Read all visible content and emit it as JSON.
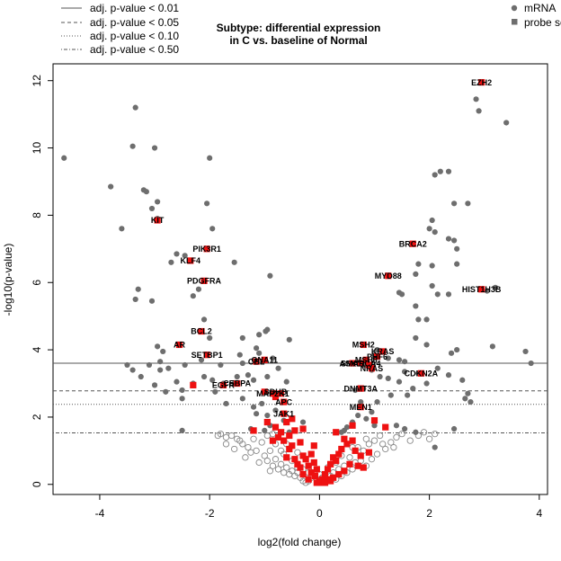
{
  "chart_data": {
    "type": "scatter",
    "title_lines": [
      "Subtype: differential expression",
      "in C vs. baseline of Normal"
    ],
    "xlabel": "log2(fold change)",
    "ylabel": "-log10(p-value)",
    "xlim": [
      -4.85,
      4.15
    ],
    "ylim": [
      -0.3,
      12.5
    ],
    "xticks": [
      -4,
      -2,
      0,
      2,
      4
    ],
    "yticks": [
      0,
      2,
      4,
      6,
      8,
      10,
      12
    ],
    "thresholds": [
      {
        "label": "adj. p-value < 0.01",
        "y": 3.6,
        "style": "solid"
      },
      {
        "label": "adj. p-value < 0.05",
        "y": 2.78,
        "style": "dashed"
      },
      {
        "label": "adj. p-value < 0.10",
        "y": 2.38,
        "style": "dotted"
      },
      {
        "label": "adj. p-value < 0.50",
        "y": 1.53,
        "style": "dotdash"
      }
    ],
    "legend_right": [
      {
        "label": "mRNA",
        "shape": "circle"
      },
      {
        "label": "probe set",
        "shape": "square"
      }
    ],
    "colors": {
      "significant": "#6e6e6e",
      "probe": "#ee1111",
      "open": "#888888",
      "line": "#555555"
    },
    "mrna_significant": [
      [
        -4.65,
        9.7
      ],
      [
        -3.8,
        8.85
      ],
      [
        -3.6,
        7.6
      ],
      [
        -3.4,
        10.05
      ],
      [
        -3.35,
        11.2
      ],
      [
        -3.35,
        5.5
      ],
      [
        -3.2,
        8.75
      ],
      [
        -3.15,
        8.7
      ],
      [
        -3.05,
        8.2
      ],
      [
        -3.0,
        10.0
      ],
      [
        -2.95,
        7.9
      ],
      [
        -2.95,
        8.4
      ],
      [
        -3.05,
        5.45
      ],
      [
        -3.3,
        5.8
      ],
      [
        -2.7,
        6.6
      ],
      [
        -2.6,
        6.85
      ],
      [
        -2.45,
        6.8
      ],
      [
        -2.3,
        5.6
      ],
      [
        -2.05,
        8.35
      ],
      [
        -2.0,
        9.7
      ],
      [
        -1.95,
        7.6
      ],
      [
        -1.55,
        6.6
      ],
      [
        -0.9,
        6.2
      ],
      [
        -2.2,
        5.8
      ],
      [
        -2.1,
        4.9
      ],
      [
        -2.0,
        4.35
      ],
      [
        -1.4,
        4.35
      ],
      [
        -1.15,
        4.05
      ],
      [
        -1.1,
        4.45
      ],
      [
        -1.1,
        3.9
      ],
      [
        -0.98,
        4.55
      ],
      [
        -0.95,
        4.6
      ],
      [
        -0.55,
        4.3
      ],
      [
        -1.4,
        3.6
      ],
      [
        -1.45,
        3.85
      ],
      [
        -1.8,
        3.55
      ],
      [
        -2.15,
        3.7
      ],
      [
        -2.45,
        3.55
      ],
      [
        -2.75,
        3.45
      ],
      [
        -2.85,
        3.95
      ],
      [
        -2.9,
        3.4
      ],
      [
        -2.95,
        4.1
      ],
      [
        -3.1,
        3.55
      ],
      [
        -3.25,
        3.2
      ],
      [
        -3.4,
        3.4
      ],
      [
        -3.5,
        3.55
      ],
      [
        -2.9,
        3.65
      ],
      [
        -0.6,
        3.05
      ],
      [
        -0.75,
        3.45
      ],
      [
        -0.85,
        3.75
      ],
      [
        -0.95,
        3.2
      ],
      [
        -1.2,
        3.1
      ],
      [
        -1.3,
        3.25
      ],
      [
        -1.5,
        3.2
      ],
      [
        -1.55,
        3.0
      ],
      [
        -1.75,
        3.0
      ],
      [
        -1.95,
        3.1
      ],
      [
        -2.1,
        3.2
      ],
      [
        -2.3,
        3.0
      ],
      [
        -2.5,
        2.8
      ],
      [
        -2.6,
        3.05
      ],
      [
        -2.8,
        2.75
      ],
      [
        -3.0,
        2.95
      ],
      [
        -2.5,
        2.55
      ],
      [
        -1.9,
        2.75
      ],
      [
        -1.7,
        2.4
      ],
      [
        -1.4,
        2.55
      ],
      [
        -1.2,
        2.3
      ],
      [
        -1.05,
        2.4
      ],
      [
        -1.15,
        2.1
      ],
      [
        -0.95,
        2.05
      ],
      [
        -0.8,
        2.2
      ],
      [
        -0.65,
        1.9
      ],
      [
        -0.9,
        1.75
      ],
      [
        -1.0,
        1.6
      ],
      [
        -1.25,
        1.65
      ],
      [
        -2.5,
        1.6
      ],
      [
        -0.3,
        1.85
      ],
      [
        -0.55,
        1.55
      ],
      [
        3.4,
        10.75
      ],
      [
        2.9,
        11.1
      ],
      [
        2.85,
        11.45
      ],
      [
        2.7,
        8.35
      ],
      [
        2.35,
        9.3
      ],
      [
        2.2,
        9.3
      ],
      [
        2.1,
        9.2
      ],
      [
        2.45,
        8.35
      ],
      [
        2.0,
        7.6
      ],
      [
        2.05,
        7.85
      ],
      [
        2.1,
        7.5
      ],
      [
        2.35,
        7.3
      ],
      [
        2.45,
        7.25
      ],
      [
        2.5,
        7.0
      ],
      [
        2.05,
        6.5
      ],
      [
        2.05,
        5.9
      ],
      [
        2.15,
        5.65
      ],
      [
        2.35,
        5.65
      ],
      [
        2.5,
        6.55
      ],
      [
        1.8,
        6.55
      ],
      [
        1.75,
        6.25
      ],
      [
        1.45,
        5.7
      ],
      [
        1.5,
        5.65
      ],
      [
        1.75,
        5.3
      ],
      [
        3.05,
        5.75
      ],
      [
        3.2,
        5.85
      ],
      [
        1.95,
        4.9
      ],
      [
        1.8,
        4.9
      ],
      [
        1.75,
        4.35
      ],
      [
        1.95,
        4.15
      ],
      [
        2.5,
        4.0
      ],
      [
        2.4,
        3.9
      ],
      [
        2.15,
        3.45
      ],
      [
        2.35,
        3.25
      ],
      [
        2.6,
        3.1
      ],
      [
        2.7,
        2.7
      ],
      [
        2.75,
        2.45
      ],
      [
        2.65,
        2.55
      ],
      [
        2.45,
        1.65
      ],
      [
        2.1,
        1.1
      ],
      [
        3.75,
        3.95
      ],
      [
        3.85,
        3.6
      ],
      [
        3.15,
        4.1
      ],
      [
        1.05,
        4.0
      ],
      [
        1.0,
        3.85
      ],
      [
        1.25,
        3.75
      ],
      [
        1.45,
        3.7
      ],
      [
        1.55,
        3.65
      ],
      [
        1.55,
        3.35
      ],
      [
        1.8,
        3.3
      ],
      [
        1.95,
        3.0
      ],
      [
        1.45,
        3.05
      ],
      [
        1.25,
        3.15
      ],
      [
        1.1,
        3.2
      ],
      [
        0.95,
        3.4
      ],
      [
        0.8,
        3.55
      ],
      [
        1.7,
        2.85
      ],
      [
        1.6,
        2.65
      ],
      [
        1.3,
        2.65
      ],
      [
        1.05,
        2.45
      ],
      [
        0.95,
        2.15
      ],
      [
        0.85,
        1.95
      ],
      [
        1.0,
        1.75
      ],
      [
        1.2,
        1.7
      ],
      [
        1.4,
        1.75
      ],
      [
        1.55,
        1.65
      ],
      [
        1.75,
        1.55
      ],
      [
        0.75,
        2.45
      ],
      [
        0.65,
        2.8
      ],
      [
        0.8,
        2.85
      ],
      [
        0.7,
        2.05
      ],
      [
        0.6,
        1.85
      ],
      [
        0.5,
        1.7
      ],
      [
        0.45,
        1.6
      ],
      [
        0.4,
        1.55
      ]
    ],
    "probe_sets": [
      [
        2.95,
        11.95
      ],
      [
        -2.95,
        7.85
      ],
      [
        -2.05,
        7.0
      ],
      [
        -2.35,
        6.65
      ],
      [
        -2.1,
        6.05
      ],
      [
        1.7,
        7.15
      ],
      [
        1.25,
        6.2
      ],
      [
        2.95,
        5.8
      ],
      [
        -2.15,
        4.55
      ],
      [
        -2.55,
        4.15
      ],
      [
        -2.05,
        3.85
      ],
      [
        0.8,
        4.15
      ],
      [
        1.15,
        3.95
      ],
      [
        1.05,
        3.8
      ],
      [
        0.85,
        3.7
      ],
      [
        0.6,
        3.6
      ],
      [
        0.75,
        3.6
      ],
      [
        0.9,
        3.55
      ],
      [
        0.95,
        3.45
      ],
      [
        1.85,
        3.3
      ],
      [
        -1.15,
        3.65
      ],
      [
        -1.0,
        3.7
      ],
      [
        -1.5,
        3.0
      ],
      [
        -1.75,
        2.95
      ],
      [
        -2.3,
        2.95
      ],
      [
        -0.7,
        2.7
      ],
      [
        -0.85,
        2.7
      ],
      [
        -1.0,
        2.75
      ],
      [
        -0.65,
        2.45
      ],
      [
        -0.8,
        2.6
      ],
      [
        -0.65,
        2.1
      ],
      [
        0.75,
        2.85
      ],
      [
        1.0,
        1.9
      ],
      [
        0.75,
        2.3
      ],
      [
        1.2,
        1.7
      ],
      [
        -0.5,
        1.95
      ],
      [
        -0.6,
        1.85
      ],
      [
        -0.45,
        1.6
      ],
      [
        -0.3,
        1.65
      ],
      [
        -1.2,
        1.6
      ],
      [
        -0.95,
        1.85
      ],
      [
        -0.8,
        1.7
      ],
      [
        -0.75,
        1.4
      ],
      [
        -0.85,
        1.3
      ],
      [
        -0.65,
        1.3
      ],
      [
        -0.5,
        1.15
      ],
      [
        -0.35,
        1.25
      ],
      [
        -0.55,
        1.05
      ],
      [
        -0.6,
        0.8
      ],
      [
        -0.45,
        0.75
      ],
      [
        -0.3,
        0.85
      ],
      [
        -0.1,
        1.15
      ],
      [
        -0.15,
        0.9
      ],
      [
        -0.25,
        0.75
      ],
      [
        -0.2,
        0.55
      ],
      [
        -0.4,
        0.6
      ],
      [
        -0.1,
        0.65
      ],
      [
        -0.05,
        0.45
      ],
      [
        -0.15,
        0.35
      ],
      [
        -0.08,
        0.25
      ],
      [
        0.0,
        0.1
      ],
      [
        0.02,
        0.05
      ],
      [
        0.05,
        0.15
      ],
      [
        0.1,
        0.3
      ],
      [
        0.15,
        0.45
      ],
      [
        0.2,
        0.6
      ],
      [
        0.25,
        0.8
      ],
      [
        0.3,
        0.7
      ],
      [
        0.35,
        0.9
      ],
      [
        0.4,
        1.05
      ],
      [
        0.5,
        1.2
      ],
      [
        0.6,
        1.3
      ],
      [
        0.65,
        1.0
      ],
      [
        0.75,
        0.85
      ],
      [
        0.8,
        0.5
      ],
      [
        0.55,
        0.6
      ],
      [
        0.45,
        0.4
      ],
      [
        0.35,
        0.3
      ],
      [
        0.25,
        0.2
      ],
      [
        0.15,
        0.15
      ],
      [
        -0.05,
        0.05
      ],
      [
        0.1,
        0.05
      ],
      [
        0.2,
        0.1
      ],
      [
        -0.2,
        0.15
      ],
      [
        -0.3,
        0.3
      ],
      [
        -0.35,
        0.5
      ],
      [
        -0.7,
        1.55
      ],
      [
        -0.55,
        1.45
      ],
      [
        0.3,
        1.55
      ],
      [
        0.45,
        1.35
      ],
      [
        0.6,
        1.75
      ],
      [
        0.7,
        0.55
      ],
      [
        0.9,
        0.95
      ]
    ],
    "mrna_not_significant": [
      [
        -1.8,
        1.5
      ],
      [
        -1.7,
        1.4
      ],
      [
        -1.6,
        1.45
      ],
      [
        -1.5,
        1.35
      ],
      [
        -1.4,
        1.2
      ],
      [
        -1.3,
        1.1
      ],
      [
        -1.25,
        0.95
      ],
      [
        -1.15,
        1.0
      ],
      [
        -1.05,
        1.25
      ],
      [
        -1.0,
        0.85
      ],
      [
        -0.95,
        0.7
      ],
      [
        -0.9,
        1.0
      ],
      [
        -0.85,
        0.55
      ],
      [
        -0.8,
        0.75
      ],
      [
        -0.75,
        0.45
      ],
      [
        -0.7,
        0.6
      ],
      [
        -0.7,
        1.0
      ],
      [
        -0.65,
        0.35
      ],
      [
        -0.6,
        0.5
      ],
      [
        -0.55,
        0.3
      ],
      [
        -0.5,
        0.4
      ],
      [
        -0.45,
        0.25
      ],
      [
        -0.4,
        0.35
      ],
      [
        -0.35,
        0.2
      ],
      [
        -0.3,
        0.1
      ],
      [
        -0.25,
        0.05
      ],
      [
        -0.2,
        0.1
      ],
      [
        -0.9,
        0.4
      ],
      [
        -1.1,
        0.65
      ],
      [
        -1.2,
        1.35
      ],
      [
        -1.55,
        1.05
      ],
      [
        -1.35,
        0.8
      ],
      [
        -1.45,
        1.3
      ],
      [
        -0.95,
        1.45
      ],
      [
        -0.8,
        1.2
      ],
      [
        -0.65,
        0.9
      ],
      [
        -0.5,
        0.7
      ],
      [
        -0.4,
        0.5
      ],
      [
        -0.3,
        0.45
      ],
      [
        -0.2,
        0.35
      ],
      [
        -0.15,
        0.2
      ],
      [
        -0.05,
        0.15
      ],
      [
        0.05,
        0.2
      ],
      [
        0.1,
        0.1
      ],
      [
        0.2,
        0.25
      ],
      [
        0.25,
        0.35
      ],
      [
        0.3,
        0.15
      ],
      [
        0.35,
        0.45
      ],
      [
        0.4,
        0.25
      ],
      [
        0.45,
        0.55
      ],
      [
        0.5,
        0.35
      ],
      [
        0.55,
        0.8
      ],
      [
        0.6,
        0.45
      ],
      [
        0.65,
        0.65
      ],
      [
        0.7,
        1.1
      ],
      [
        0.75,
        0.7
      ],
      [
        0.8,
        1.0
      ],
      [
        0.85,
        0.55
      ],
      [
        0.9,
        1.2
      ],
      [
        0.95,
        0.75
      ],
      [
        1.0,
        1.3
      ],
      [
        1.05,
        0.9
      ],
      [
        1.1,
        1.45
      ],
      [
        1.2,
        1.05
      ],
      [
        1.3,
        1.25
      ],
      [
        1.4,
        1.4
      ],
      [
        1.5,
        1.5
      ],
      [
        1.65,
        1.3
      ],
      [
        1.8,
        1.45
      ],
      [
        2.0,
        1.35
      ],
      [
        2.1,
        1.5
      ],
      [
        1.9,
        1.55
      ],
      [
        1.35,
        1.1
      ],
      [
        1.15,
        1.2
      ],
      [
        0.85,
        1.35
      ],
      [
        0.6,
        1.1
      ],
      [
        0.4,
        0.85
      ],
      [
        0.3,
        0.65
      ],
      [
        0.15,
        0.5
      ],
      [
        -0.85,
        1.5
      ],
      [
        -0.6,
        1.2
      ],
      [
        -0.4,
        0.95
      ],
      [
        -1.7,
        1.2
      ],
      [
        -1.85,
        1.45
      ],
      [
        -0.1,
        0.5
      ],
      [
        0.0,
        0.3
      ]
    ],
    "labels": [
      {
        "text": "EZH2",
        "x": 2.95,
        "y": 11.95
      },
      {
        "text": "KIT",
        "x": -2.95,
        "y": 7.85
      },
      {
        "text": "BRCA2",
        "x": 1.7,
        "y": 7.15
      },
      {
        "text": "PIK3R1",
        "x": -2.05,
        "y": 7.0
      },
      {
        "text": "KLF4",
        "x": -2.35,
        "y": 6.65
      },
      {
        "text": "PDGFRA",
        "x": -2.1,
        "y": 6.05
      },
      {
        "text": "MYD88",
        "x": 1.25,
        "y": 6.2
      },
      {
        "text": "HIST1H3B",
        "x": 2.95,
        "y": 5.8
      },
      {
        "text": "BCL2",
        "x": -2.15,
        "y": 4.55
      },
      {
        "text": "AR",
        "x": -2.55,
        "y": 4.15
      },
      {
        "text": "SETBP1",
        "x": -2.05,
        "y": 3.85
      },
      {
        "text": "MSH2",
        "x": 0.8,
        "y": 4.15
      },
      {
        "text": "KRAS",
        "x": 1.15,
        "y": 3.95
      },
      {
        "text": "PHF6",
        "x": 1.05,
        "y": 3.8
      },
      {
        "text": "MSH6",
        "x": 0.85,
        "y": 3.7
      },
      {
        "text": "SMARCA4",
        "x": 0.75,
        "y": 3.6
      },
      {
        "text": "ASXL1",
        "x": 0.6,
        "y": 3.6
      },
      {
        "text": "NRAS",
        "x": 0.95,
        "y": 3.45
      },
      {
        "text": "CDKN2A",
        "x": 1.85,
        "y": 3.3
      },
      {
        "text": "GNA11",
        "x": -1.0,
        "y": 3.7
      },
      {
        "text": "CBL",
        "x": -1.15,
        "y": 3.65
      },
      {
        "text": "EGFR",
        "x": -1.75,
        "y": 2.95
      },
      {
        "text": "CEBPA",
        "x": -1.5,
        "y": 3.0
      },
      {
        "text": "DNMT3A",
        "x": 0.75,
        "y": 2.85
      },
      {
        "text": "MAP2K1",
        "x": -0.85,
        "y": 2.7
      },
      {
        "text": "SDHB",
        "x": -0.8,
        "y": 2.75
      },
      {
        "text": "APC",
        "x": -0.65,
        "y": 2.45
      },
      {
        "text": "MEN1",
        "x": 0.75,
        "y": 2.3
      },
      {
        "text": "JAK1",
        "x": -0.65,
        "y": 2.1
      }
    ]
  }
}
